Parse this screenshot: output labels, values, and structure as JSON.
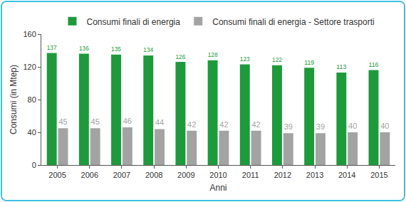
{
  "chart_data": {
    "type": "bar",
    "categories": [
      "2005",
      "2006",
      "2007",
      "2008",
      "2009",
      "2010",
      "2011",
      "2012",
      "2013",
      "2014",
      "2015"
    ],
    "series": [
      {
        "name": "Consumi finali di energia",
        "color": "#1e9a3c",
        "values": [
          137,
          136,
          135,
          134,
          126,
          128,
          123,
          122,
          119,
          113,
          116
        ]
      },
      {
        "name": "Consumi finali di energia - Settore trasporti",
        "color": "#a3a3a3",
        "values": [
          45,
          45,
          46,
          44,
          42,
          42,
          42,
          39,
          39,
          40,
          40
        ]
      }
    ],
    "x_label": "Anni",
    "y_label": "Consumi (in Mtep)",
    "ylim": [
      0,
      160
    ],
    "yticks": [
      0,
      40,
      80,
      120,
      160
    ],
    "grid": false,
    "legend": "top",
    "data_labels": true
  }
}
